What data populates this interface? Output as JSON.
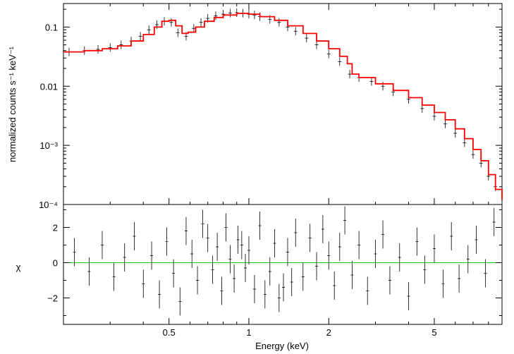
{
  "chart_data": [
    {
      "type": "scatter",
      "panel": "spectrum",
      "xlabel": "Energy (keV)",
      "ylabel": "normalized counts s⁻¹ keV⁻¹",
      "xscale": "log",
      "yscale": "log",
      "xlim": [
        0.2,
        9.0
      ],
      "ylim": [
        0.0001,
        0.25
      ],
      "y_tick_labels": [
        "0.1",
        "0.01",
        "10⁻³",
        "10⁻⁴"
      ],
      "y_ticks": [
        0.1,
        0.01,
        0.001,
        0.0001
      ],
      "colors": {
        "data": "#000000",
        "model": "#ff0000"
      },
      "series": [
        {
          "role": "data",
          "x": [
            0.21,
            0.24,
            0.27,
            0.3,
            0.33,
            0.36,
            0.39,
            0.42,
            0.45,
            0.48,
            0.51,
            0.54,
            0.58,
            0.62,
            0.66,
            0.7,
            0.75,
            0.8,
            0.85,
            0.9,
            0.95,
            1.0,
            1.05,
            1.1,
            1.2,
            1.3,
            1.4,
            1.5,
            1.65,
            1.8,
            2.0,
            2.2,
            2.4,
            2.6,
            2.9,
            3.2,
            3.5,
            4.0,
            4.5,
            5.0,
            5.5,
            6.0,
            6.5,
            7.0,
            7.5,
            8.0,
            8.5
          ],
          "y": [
            0.038,
            0.04,
            0.042,
            0.045,
            0.05,
            0.058,
            0.07,
            0.09,
            0.11,
            0.125,
            0.12,
            0.08,
            0.07,
            0.095,
            0.12,
            0.14,
            0.155,
            0.165,
            0.172,
            0.175,
            0.172,
            0.165,
            0.16,
            0.15,
            0.135,
            0.12,
            0.1,
            0.085,
            0.065,
            0.05,
            0.035,
            0.026,
            0.016,
            0.014,
            0.012,
            0.01,
            0.008,
            0.006,
            0.0042,
            0.0031,
            0.0023,
            0.0016,
            0.0011,
            0.0007,
            0.0005,
            0.0003,
            0.0002
          ]
        },
        {
          "role": "model",
          "x": [
            0.2,
            0.24,
            0.28,
            0.32,
            0.36,
            0.4,
            0.44,
            0.47,
            0.5,
            0.53,
            0.56,
            0.59,
            0.63,
            0.68,
            0.74,
            0.8,
            0.9,
            1.0,
            1.1,
            1.25,
            1.4,
            1.6,
            1.8,
            2.0,
            2.2,
            2.35,
            2.45,
            2.6,
            3.0,
            3.5,
            4.0,
            4.5,
            5.0,
            5.5,
            6.0,
            6.5,
            7.0,
            7.5,
            8.0,
            8.5,
            9.0
          ],
          "y": [
            0.038,
            0.04,
            0.043,
            0.048,
            0.058,
            0.075,
            0.1,
            0.125,
            0.13,
            0.105,
            0.078,
            0.082,
            0.1,
            0.125,
            0.145,
            0.16,
            0.17,
            0.165,
            0.15,
            0.13,
            0.105,
            0.078,
            0.058,
            0.043,
            0.032,
            0.024,
            0.016,
            0.014,
            0.011,
            0.0085,
            0.0064,
            0.0048,
            0.0036,
            0.0027,
            0.0019,
            0.0013,
            0.00085,
            0.00055,
            0.00032,
            0.00018,
            0.00012
          ]
        }
      ]
    },
    {
      "type": "scatter",
      "panel": "residuals",
      "xlabel": "Energy (keV)",
      "ylabel": "χ",
      "xscale": "log",
      "xlim": [
        0.2,
        9.0
      ],
      "ylim": [
        -3.5,
        3.3
      ],
      "x_ticks": [
        0.5,
        1,
        2,
        5
      ],
      "x_tick_labels": [
        "0.5",
        "1",
        "2",
        "5"
      ],
      "y_ticks": [
        2,
        0,
        -2
      ],
      "y_tick_labels": [
        "2",
        "0",
        "−2"
      ],
      "zero_line_color": "#00cc00",
      "series": [
        {
          "role": "residuals",
          "x": [
            0.22,
            0.25,
            0.28,
            0.31,
            0.34,
            0.37,
            0.4,
            0.43,
            0.46,
            0.49,
            0.52,
            0.55,
            0.58,
            0.61,
            0.64,
            0.67,
            0.7,
            0.73,
            0.76,
            0.79,
            0.82,
            0.85,
            0.88,
            0.91,
            0.94,
            0.97,
            1.0,
            1.05,
            1.1,
            1.15,
            1.2,
            1.25,
            1.3,
            1.35,
            1.4,
            1.45,
            1.5,
            1.6,
            1.7,
            1.8,
            1.9,
            2.0,
            2.1,
            2.2,
            2.3,
            2.45,
            2.6,
            2.8,
            3.0,
            3.2,
            3.4,
            3.7,
            4.0,
            4.3,
            4.6,
            5.0,
            5.4,
            5.8,
            6.2,
            6.7,
            7.2,
            7.8,
            8.4
          ],
          "y": [
            0.6,
            -0.5,
            1.0,
            -0.8,
            0.3,
            1.5,
            -1.2,
            0.4,
            -1.8,
            1.2,
            -0.6,
            -2.2,
            1.8,
            0.5,
            -1.0,
            2.2,
            1.4,
            -0.4,
            0.9,
            -1.6,
            2.0,
            0.2,
            -0.9,
            1.3,
            1.0,
            -0.3,
            0.7,
            -1.5,
            2.1,
            -1.8,
            -0.5,
            1.1,
            -2.0,
            -1.4,
            0.6,
            -1.1,
            1.7,
            -0.8,
            1.4,
            -0.2,
            1.9,
            0.4,
            -1.3,
            0.9,
            2.4,
            -0.7,
            1.0,
            -1.6,
            0.5,
            1.6,
            -1.0,
            0.3,
            -1.9,
            1.2,
            -0.4,
            0.8,
            -1.2,
            1.5,
            -0.9,
            0.2,
            1.3,
            -0.6,
            2.3
          ]
        }
      ]
    }
  ]
}
